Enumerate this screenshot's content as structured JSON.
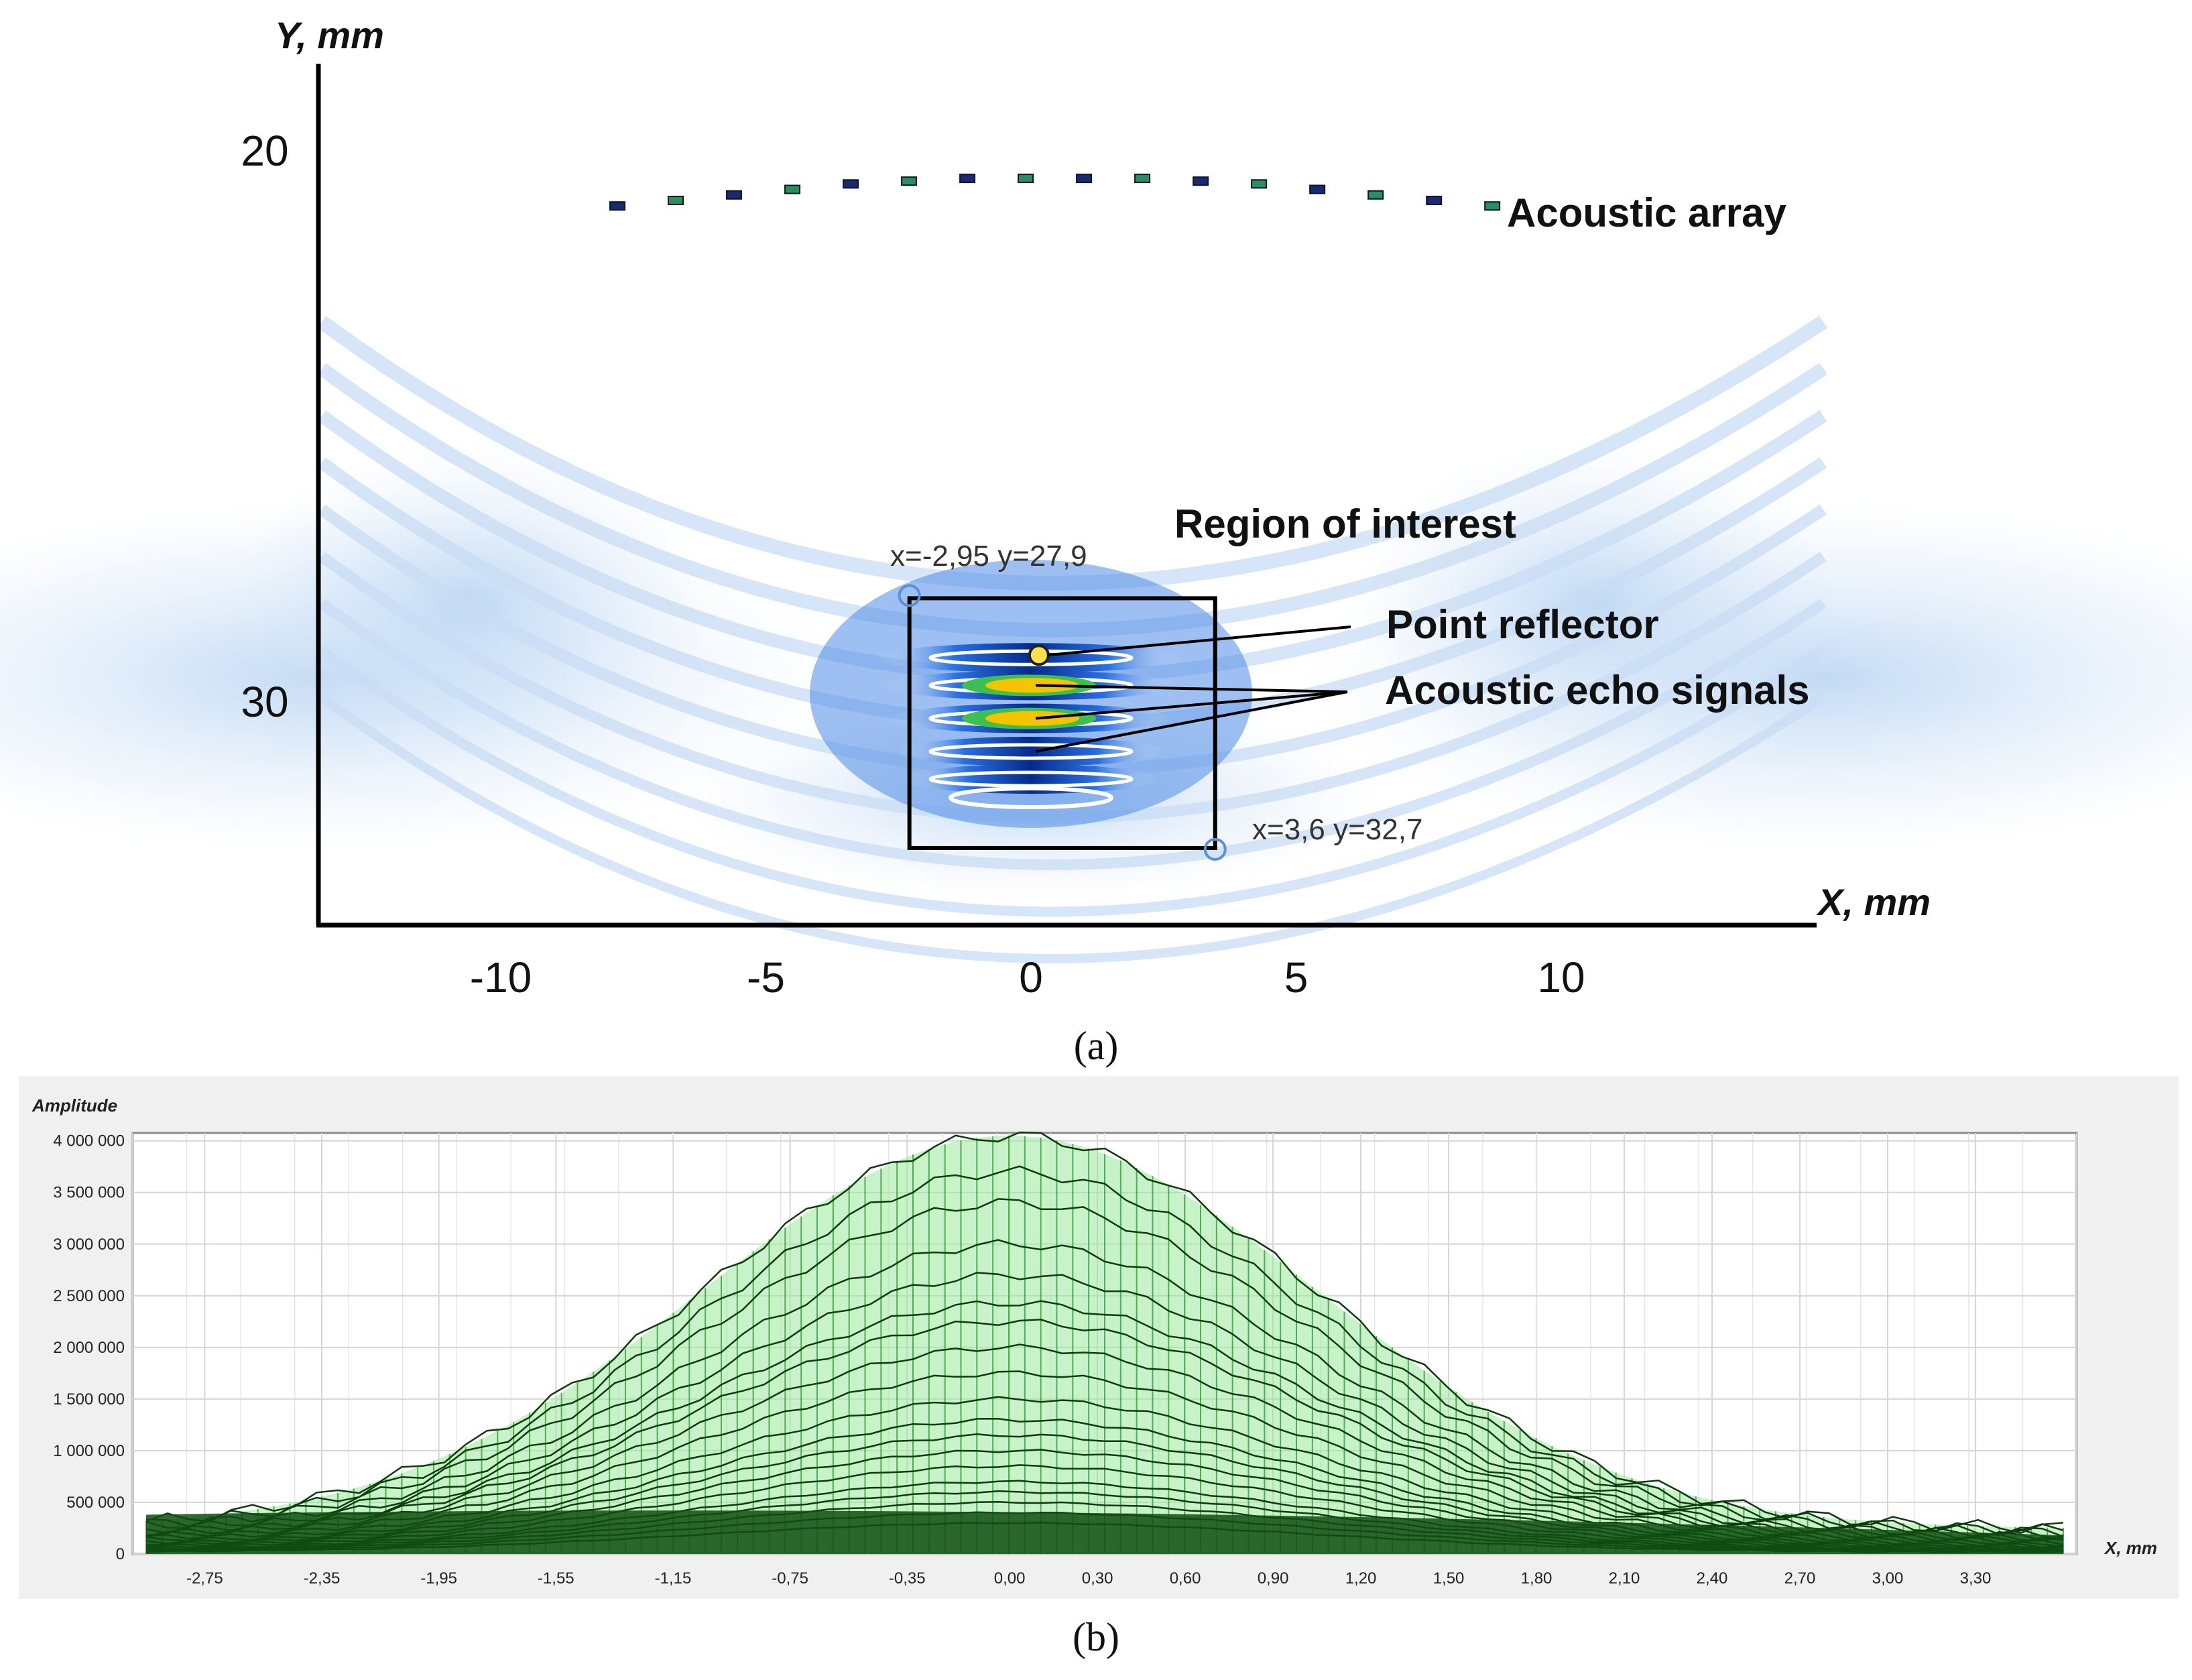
{
  "chart_data": [
    {
      "panel": "(a)",
      "type": "heatmap",
      "title": "",
      "xlabel": "X, mm",
      "ylabel": "Y, mm",
      "xlim": [
        -12.5,
        14.5
      ],
      "ylim": [
        18,
        34
      ],
      "x_ticks": [
        "-10",
        "-5",
        "0",
        "5",
        "10"
      ],
      "x_tick_values": [
        -10,
        -5,
        0,
        5,
        10
      ],
      "y_ticks": [
        "20",
        "30"
      ],
      "y_tick_values": [
        20,
        30
      ],
      "array_elements_x": [
        -7.8,
        -6.7,
        -5.6,
        -4.5,
        -3.4,
        -2.3,
        -1.2,
        -0.1,
        1.0,
        2.1,
        3.2,
        4.3,
        5.4,
        6.5,
        7.6,
        8.7
      ],
      "array_elements_y": [
        21.0,
        20.9,
        20.8,
        20.7,
        20.6,
        20.55,
        20.5,
        20.5,
        20.5,
        20.5,
        20.55,
        20.6,
        20.7,
        20.8,
        20.9,
        21.0
      ],
      "roi": {
        "x1": -2.95,
        "y1": 27.9,
        "x2": 3.6,
        "y2": 32.7
      },
      "roi_corner_labels": [
        "x=-2,95 y=27,9",
        "x=3,6 y=32,7"
      ],
      "reflector": {
        "x": 0.15,
        "y": 29.2
      },
      "echo_bands_y": [
        29.2,
        29.7,
        30.3,
        30.9,
        31.4
      ],
      "annotations": {
        "array": "Acoustic array",
        "roi": "Region of interest",
        "reflector": "Point reflector",
        "echo": "Acoustic echo signals"
      },
      "colors": {
        "weak": "#cfe3f7",
        "medium": "#1d5fd6",
        "strong": "#062a8c",
        "peak": "#f5c400"
      }
    },
    {
      "panel": "(b)",
      "type": "area",
      "title": "",
      "xlabel": "X, mm",
      "ylabel": "Amplitude",
      "xlim": [
        -2.95,
        3.6
      ],
      "ylim": [
        0,
        4050000
      ],
      "x_tick_labels": [
        "-2,75",
        "-2,35",
        "-1,95",
        "-1,55",
        "-1,15",
        "-0,75",
        "-0,35",
        "0,00",
        "0,30",
        "0,60",
        "0,90",
        "1,20",
        "1,50",
        "1,80",
        "2,10",
        "2,40",
        "2,70",
        "3,00",
        "3,30"
      ],
      "x_tick_values": [
        -2.75,
        -2.35,
        -1.95,
        -1.55,
        -1.15,
        -0.75,
        -0.35,
        0.0,
        0.3,
        0.6,
        0.9,
        1.2,
        1.5,
        1.8,
        2.1,
        2.4,
        2.7,
        3.0,
        3.3
      ],
      "y_tick_labels": [
        "4 000 000",
        "3 500 000",
        "3 000 000",
        "2 500 000",
        "2 000 000",
        "1 500 000",
        "1 000 000",
        "500 000",
        "0"
      ],
      "y_tick_values": [
        4000000,
        3500000,
        3000000,
        2500000,
        2000000,
        1500000,
        1000000,
        500000,
        0
      ],
      "series_peaks": [
        4050000,
        3700000,
        3400000,
        3000000,
        2700000,
        2430000,
        2250000,
        2000000,
        1750000,
        1500000,
        1300000,
        1150000,
        1000000,
        850000,
        700000,
        600000,
        500000,
        400000,
        300000
      ],
      "peak_center_x": 0.0,
      "width_sigma": 1.05,
      "grid": true,
      "colors": {
        "fill": "#9be79b",
        "line": "#0b3d0b",
        "base": "#0f4f12",
        "bg": "#f0f0f0"
      }
    }
  ]
}
